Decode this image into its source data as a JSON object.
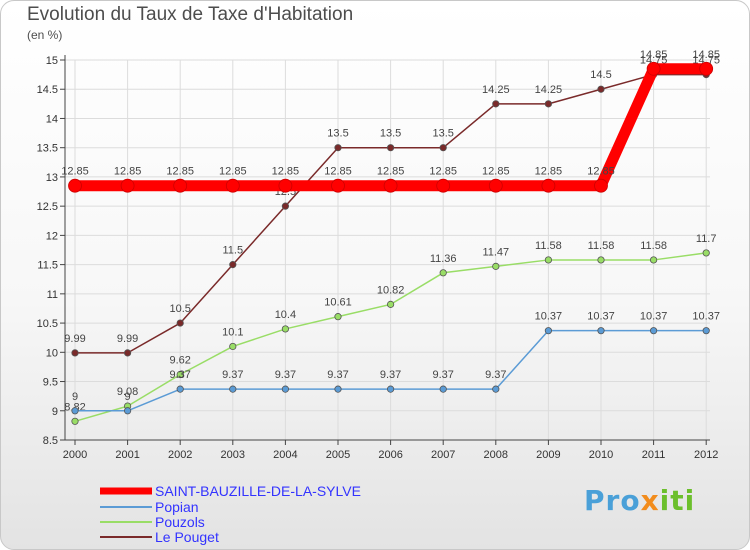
{
  "header": {
    "title": "Evolution du Taux de Taxe d'Habitation",
    "subtitle": "(en %)"
  },
  "logo": {
    "text": "Proxiti"
  },
  "chart_data": {
    "type": "line",
    "title": "Evolution du Taux de Taxe d'Habitation",
    "subtitle": "(en %)",
    "xlabel": "",
    "ylabel": "",
    "x": [
      "2000",
      "2001",
      "2002",
      "2003",
      "2004",
      "2005",
      "2006",
      "2007",
      "2008",
      "2009",
      "2010",
      "2011",
      "2012"
    ],
    "ylim": [
      8.5,
      15
    ],
    "yticks": [
      "8.5",
      "9",
      "9.5",
      "10",
      "10.5",
      "11",
      "11.5",
      "12",
      "12.5",
      "13",
      "13.5",
      "14",
      "14.5",
      "15"
    ],
    "grid": true,
    "legend_position": "bottom-left",
    "series": [
      {
        "name": "SAINT-BAUZILLE-DE-LA-SYLVE",
        "color": "#ff0000",
        "legend_text_color": "#3333ff",
        "values": [
          12.85,
          12.85,
          12.85,
          12.85,
          12.85,
          12.85,
          12.85,
          12.85,
          12.85,
          12.85,
          12.85,
          14.85,
          14.85
        ],
        "labels": [
          "12.85",
          "12.85",
          "12.85",
          "12.85",
          "12.85",
          "12.85",
          "12.85",
          "12.85",
          "12.85",
          "12.85",
          "12.85",
          "14.85",
          "14.85"
        ]
      },
      {
        "name": "Popian",
        "color": "#5b9bd5",
        "legend_text_color": "#3333ff",
        "values": [
          9,
          9,
          9.37,
          9.37,
          9.37,
          9.37,
          9.37,
          9.37,
          9.37,
          10.37,
          10.37,
          10.37,
          10.37
        ],
        "labels": [
          "9",
          "9",
          "9.37",
          "9.37",
          "9.37",
          "9.37",
          "9.37",
          "9.37",
          "9.37",
          "10.37",
          "10.37",
          "10.37",
          "10.37"
        ]
      },
      {
        "name": "Pouzols",
        "color": "#99dd66",
        "legend_text_color": "#3333ff",
        "values": [
          8.82,
          9.08,
          9.62,
          10.1,
          10.4,
          10.61,
          10.82,
          11.36,
          11.47,
          11.58,
          11.58,
          11.58,
          11.7
        ],
        "labels": [
          "8.82",
          "9.08",
          "9.62",
          "10.1",
          "10.4",
          "10.61",
          "10.82",
          "11.36",
          "11.47",
          "11.58",
          "11.58",
          "11.58",
          "11.7"
        ]
      },
      {
        "name": "Le Pouget",
        "color": "#7a2a2a",
        "legend_text_color": "#3333ff",
        "values": [
          9.99,
          9.99,
          10.5,
          11.5,
          12.5,
          13.5,
          13.5,
          13.5,
          14.25,
          14.25,
          14.5,
          14.75,
          14.75
        ],
        "labels": [
          "9.99",
          "9.99",
          "10.5",
          "11.5",
          "12.5",
          "13.5",
          "13.5",
          "13.5",
          "14.25",
          "14.25",
          "14.5",
          "14.75",
          "14.75"
        ]
      }
    ]
  }
}
